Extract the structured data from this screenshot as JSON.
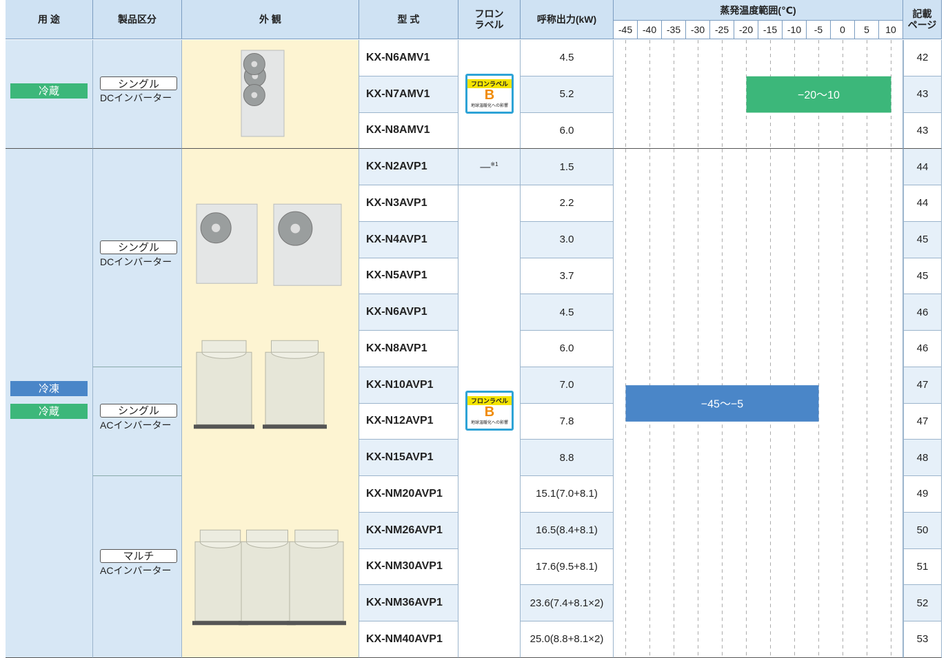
{
  "header": {
    "use": "用 途",
    "category": "製品区分",
    "appearance": "外 観",
    "model": "型 式",
    "label": [
      "フロン",
      "ラベル"
    ],
    "output": "呼称出力(kW)",
    "temp": "蒸発温度範囲(℃)",
    "temp_ticks": [
      -45,
      -40,
      -35,
      -30,
      -25,
      -20,
      -15,
      -10,
      -5,
      0,
      5,
      10
    ],
    "page": [
      "記載",
      "ページ"
    ]
  },
  "flon_label": {
    "title": "フロンラベル",
    "grade": "B",
    "caption": "地球温暖化への影響"
  },
  "groups": [
    {
      "uses": [
        "冷蔵"
      ],
      "range": {
        "label": "−20〜10",
        "from": -20,
        "to": 10
      },
      "subgroups": [
        {
          "type": "シングル",
          "inverter": "DCインバーター",
          "rows": [
            {
              "model": "KX-N6AMV1",
              "output": "4.5",
              "page": 42
            },
            {
              "model": "KX-N7AMV1",
              "output": "5.2",
              "page": 43
            },
            {
              "model": "KX-N8AMV1",
              "output": "6.0",
              "page": 43
            }
          ]
        }
      ]
    },
    {
      "uses": [
        "冷凍",
        "冷蔵"
      ],
      "range": {
        "label": "−45〜−5",
        "from": -45,
        "to": -5
      },
      "subgroups": [
        {
          "type": "シングル",
          "inverter": "DCインバーター",
          "rows": [
            {
              "model": "KX-N2AVP1",
              "output": "1.5",
              "page": 44,
              "flon": "—",
              "flon_note": "※1"
            },
            {
              "model": "KX-N3AVP1",
              "output": "2.2",
              "page": 44
            },
            {
              "model": "KX-N4AVP1",
              "output": "3.0",
              "page": 45
            },
            {
              "model": "KX-N5AVP1",
              "output": "3.7",
              "page": 45
            },
            {
              "model": "KX-N6AVP1",
              "output": "4.5",
              "page": 46
            },
            {
              "model": "KX-N8AVP1",
              "output": "6.0",
              "page": 46
            }
          ]
        },
        {
          "type": "シングル",
          "inverter": "ACインバーター",
          "rows": [
            {
              "model": "KX-N10AVP1",
              "output": "7.0",
              "page": 47
            },
            {
              "model": "KX-N12AVP1",
              "output": "7.8",
              "page": 47
            },
            {
              "model": "KX-N15AVP1",
              "output": "8.8",
              "page": 48
            }
          ]
        },
        {
          "type": "マルチ",
          "inverter": "ACインバーター",
          "rows": [
            {
              "model": "KX-NM20AVP1",
              "output": "15.1(7.0+8.1)",
              "page": 49
            },
            {
              "model": "KX-NM26AVP1",
              "output": "16.5(8.4+8.1)",
              "page": 50
            },
            {
              "model": "KX-NM30AVP1",
              "output": "17.6(9.5+8.1)",
              "page": 51
            },
            {
              "model": "KX-NM36AVP1",
              "output": "23.6(7.4+8.1×2)",
              "page": 52
            },
            {
              "model": "KX-NM40AVP1",
              "output": "25.0(8.8+8.1×2)",
              "page": 53
            }
          ]
        }
      ]
    }
  ]
}
